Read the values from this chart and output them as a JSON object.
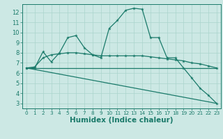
{
  "background_color": "#cce8e4",
  "grid_color": "#aad4cc",
  "line_color": "#1a7a6a",
  "xlabel": "Humidex (Indice chaleur)",
  "xlim": [
    -0.5,
    23.5
  ],
  "ylim": [
    2.5,
    12.8
  ],
  "xticks": [
    0,
    1,
    2,
    3,
    4,
    5,
    6,
    7,
    8,
    9,
    10,
    11,
    12,
    13,
    14,
    15,
    16,
    17,
    18,
    19,
    20,
    21,
    22,
    23
  ],
  "yticks": [
    3,
    4,
    5,
    6,
    7,
    8,
    9,
    10,
    11,
    12
  ],
  "series1_x": [
    0,
    1,
    2,
    3,
    4,
    5,
    6,
    7,
    8,
    9,
    10,
    11,
    12,
    13,
    14,
    15,
    16,
    17,
    18,
    19,
    20,
    21,
    22,
    23
  ],
  "series1_y": [
    6.5,
    6.5,
    8.1,
    7.1,
    8.0,
    9.5,
    9.7,
    8.5,
    7.8,
    7.5,
    10.4,
    11.2,
    12.2,
    12.4,
    12.3,
    9.5,
    9.5,
    7.5,
    7.5,
    6.5,
    5.5,
    4.5,
    3.8,
    3.0
  ],
  "series2_x": [
    0,
    1,
    2,
    3,
    4,
    5,
    6,
    7,
    8,
    9,
    10,
    11,
    12,
    13,
    14,
    15,
    16,
    17,
    18,
    19,
    20,
    21,
    22,
    23
  ],
  "series2_y": [
    6.5,
    6.6,
    7.5,
    7.8,
    7.9,
    8.0,
    8.0,
    7.9,
    7.8,
    7.7,
    7.7,
    7.7,
    7.7,
    7.7,
    7.7,
    7.6,
    7.5,
    7.4,
    7.3,
    7.2,
    7.0,
    6.9,
    6.7,
    6.5
  ],
  "series3_x": [
    0,
    23
  ],
  "series3_y": [
    6.5,
    6.5
  ],
  "series4_x": [
    0,
    23
  ],
  "series4_y": [
    6.5,
    3.0
  ],
  "tick_fontsize": 6,
  "label_fontsize": 7.5
}
